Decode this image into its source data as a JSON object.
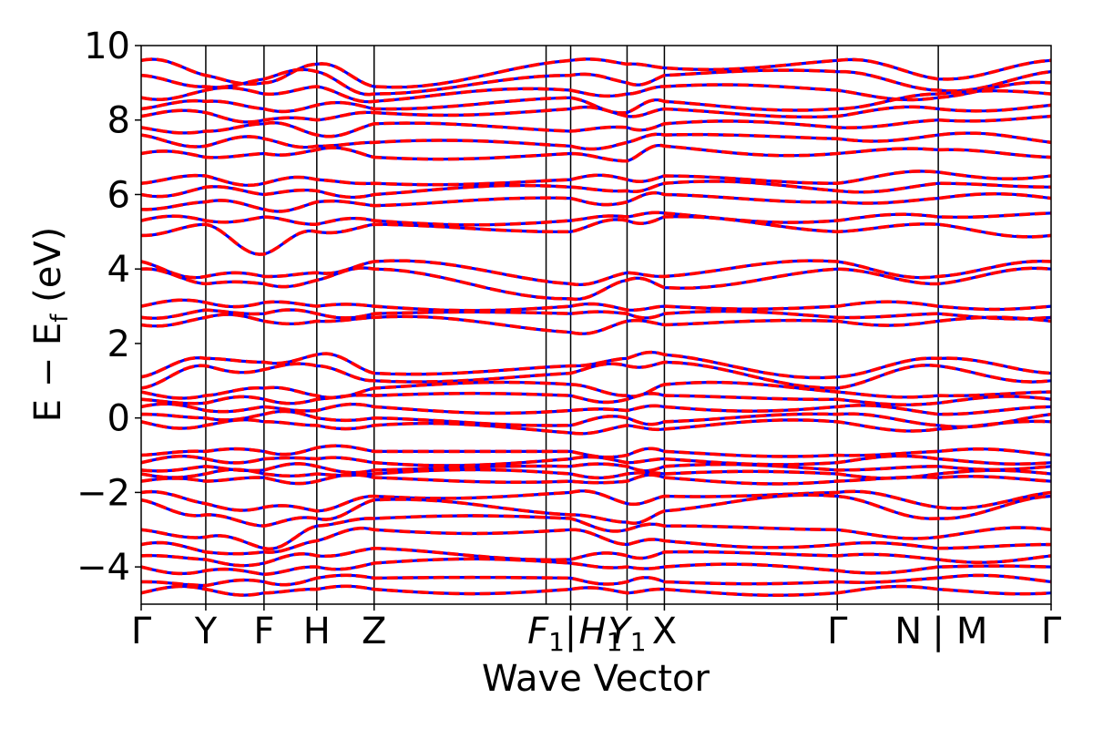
{
  "chart_data": {
    "type": "line",
    "title": "",
    "xlabel": "Wave Vector",
    "ylabel": "E − E",
    "ylabel_subscript": "f",
    "ylabel_unit": " (eV)",
    "ylim": [
      -5,
      10
    ],
    "yticks": [
      -4,
      -2,
      0,
      2,
      4,
      6,
      8,
      10
    ],
    "ytick_labels": [
      "−4",
      "−2",
      "0",
      "2",
      "4",
      "6",
      "8",
      "10"
    ],
    "kpath": [
      {
        "label": "Γ",
        "pos": 0.0
      },
      {
        "label": "Y",
        "pos": 0.071
      },
      {
        "label": "F",
        "pos": 0.135
      },
      {
        "label": "H",
        "pos": 0.193
      },
      {
        "label": "Z",
        "pos": 0.256
      },
      {
        "label": "F1|H1",
        "pos": 0.472
      },
      {
        "label": "Y1",
        "pos": 0.534
      },
      {
        "label": "X",
        "pos": 0.575
      },
      {
        "label": "Γ",
        "pos": 0.765
      },
      {
        "label": "N|M",
        "pos": 0.876
      },
      {
        "label": "Γ",
        "pos": 1.0
      }
    ],
    "kpath_tick_labels": [
      {
        "text": "Γ",
        "pos": 0.0
      },
      {
        "text": "Y",
        "pos": 0.071
      },
      {
        "text": "F",
        "pos": 0.135
      },
      {
        "text": "H",
        "pos": 0.193
      },
      {
        "text": "Z",
        "pos": 0.256
      },
      {
        "text": "F",
        "sub": "1",
        "pos": 0.445
      },
      {
        "text": "|",
        "pos": 0.472
      },
      {
        "text": "H",
        "sub": "1",
        "pos": 0.505
      },
      {
        "text": "Y",
        "sub": "1",
        "pos": 0.534
      },
      {
        "text": "X",
        "pos": 0.575
      },
      {
        "text": "Γ",
        "pos": 0.765
      },
      {
        "text": "N",
        "pos": 0.843
      },
      {
        "text": "|",
        "pos": 0.876
      },
      {
        "text": "M",
        "pos": 0.913
      },
      {
        "text": "Γ",
        "pos": 1.0
      }
    ],
    "vlines": [
      0.071,
      0.135,
      0.193,
      0.256,
      0.445,
      0.472,
      0.534,
      0.575,
      0.765,
      0.876
    ],
    "series": [
      {
        "style": "solid",
        "color": "#0000ff"
      },
      {
        "style": "dashed",
        "color": "#ff0000"
      }
    ],
    "bands": [
      [
        9.6,
        9.2,
        9.0,
        9.5,
        8.9,
        9.6,
        9.5,
        9.4,
        9.6,
        9.1,
        9.6
      ],
      [
        9.2,
        8.9,
        9.1,
        9.3,
        8.7,
        9.2,
        9.0,
        9.2,
        9.3,
        8.8,
        9.3
      ],
      [
        8.6,
        8.8,
        8.7,
        8.9,
        8.5,
        8.8,
        8.7,
        8.9,
        8.8,
        8.6,
        9.0
      ],
      [
        8.3,
        8.5,
        8.3,
        8.4,
        8.3,
        8.6,
        8.2,
        8.5,
        8.3,
        8.7,
        8.7
      ],
      [
        8.1,
        8.2,
        8.0,
        8.0,
        8.2,
        8.3,
        8.1,
        8.3,
        8.1,
        8.3,
        8.4
      ],
      [
        7.8,
        7.7,
        7.9,
        7.6,
        7.9,
        7.7,
        7.8,
        7.9,
        7.8,
        8.0,
        8.1
      ],
      [
        7.6,
        7.3,
        7.5,
        7.3,
        7.4,
        7.3,
        7.4,
        7.6,
        7.5,
        7.6,
        7.4
      ],
      [
        7.1,
        7.0,
        7.1,
        7.2,
        7.0,
        7.1,
        6.9,
        7.3,
        7.1,
        7.2,
        7.0
      ],
      [
        6.3,
        6.5,
        6.3,
        6.4,
        6.3,
        6.4,
        6.4,
        6.5,
        6.3,
        6.6,
        6.5
      ],
      [
        6.0,
        6.2,
        6.0,
        6.1,
        6.0,
        6.2,
        6.1,
        6.3,
        6.1,
        6.3,
        6.2
      ],
      [
        5.6,
        5.8,
        5.6,
        5.8,
        5.7,
        5.9,
        5.8,
        6.0,
        5.8,
        5.9,
        5.9
      ],
      [
        5.3,
        5.3,
        5.4,
        5.2,
        5.3,
        5.3,
        5.4,
        5.5,
        5.3,
        5.4,
        5.5
      ],
      [
        4.9,
        5.2,
        4.4,
        5.0,
        5.2,
        5.0,
        5.3,
        5.4,
        5.0,
        5.2,
        4.9
      ],
      [
        4.2,
        3.8,
        3.8,
        3.9,
        4.2,
        3.6,
        3.9,
        3.8,
        4.2,
        3.8,
        4.2
      ],
      [
        4.0,
        3.6,
        3.6,
        3.7,
        4.0,
        3.2,
        3.7,
        3.5,
        4.0,
        3.6,
        4.0
      ],
      [
        3.0,
        3.1,
        3.1,
        3.0,
        3.0,
        3.0,
        2.9,
        3.0,
        3.0,
        3.0,
        3.0
      ],
      [
        2.7,
        2.9,
        2.8,
        2.8,
        2.8,
        2.8,
        2.8,
        2.8,
        2.7,
        2.8,
        2.7
      ],
      [
        2.5,
        2.7,
        2.6,
        2.6,
        2.7,
        2.3,
        2.6,
        2.5,
        2.6,
        2.6,
        2.6
      ],
      [
        1.1,
        1.6,
        1.5,
        1.7,
        1.2,
        1.4,
        1.6,
        1.7,
        1.1,
        1.6,
        1.2
      ],
      [
        0.8,
        1.4,
        1.3,
        1.4,
        1.0,
        1.2,
        1.4,
        1.5,
        0.8,
        1.4,
        1.0
      ],
      [
        0.7,
        0.6,
        0.8,
        0.6,
        0.8,
        0.9,
        0.6,
        0.9,
        0.7,
        0.6,
        0.7
      ],
      [
        0.5,
        0.4,
        0.5,
        0.5,
        0.6,
        0.6,
        0.5,
        0.6,
        0.5,
        0.4,
        0.5
      ],
      [
        0.3,
        0.2,
        0.3,
        0.2,
        0.3,
        0.2,
        0.2,
        0.3,
        0.3,
        0.1,
        0.3
      ],
      [
        0.1,
        0.0,
        0.1,
        0.0,
        0.0,
        -0.2,
        0.0,
        -0.1,
        0.1,
        -0.2,
        0.1
      ],
      [
        -0.1,
        -0.2,
        -0.1,
        -0.2,
        -0.2,
        -0.4,
        -0.2,
        -0.3,
        -0.1,
        -0.3,
        -0.1
      ],
      [
        -1.0,
        -0.9,
        -0.9,
        -0.8,
        -0.9,
        -0.9,
        -1.0,
        -0.9,
        -1.0,
        -0.9,
        -1.0
      ],
      [
        -1.2,
        -1.1,
        -1.1,
        -1.1,
        -1.2,
        -1.1,
        -1.2,
        -1.1,
        -1.2,
        -1.1,
        -1.2
      ],
      [
        -1.4,
        -1.3,
        -1.4,
        -1.3,
        -1.4,
        -1.3,
        -1.3,
        -1.3,
        -1.4,
        -1.3,
        -1.3
      ],
      [
        -1.5,
        -1.5,
        -1.5,
        -1.5,
        -1.5,
        -1.5,
        -1.5,
        -1.5,
        -1.5,
        -1.5,
        -1.5
      ],
      [
        -1.7,
        -1.7,
        -1.6,
        -1.7,
        -1.6,
        -1.7,
        -1.7,
        -1.6,
        -1.7,
        -1.6,
        -1.7
      ],
      [
        -2.0,
        -2.3,
        -2.4,
        -2.5,
        -2.1,
        -2.0,
        -2.3,
        -2.1,
        -2.0,
        -2.4,
        -2.0
      ],
      [
        -2.2,
        -2.6,
        -2.9,
        -2.7,
        -2.2,
        -2.6,
        -2.8,
        -2.5,
        -2.1,
        -2.7,
        -2.1
      ],
      [
        -3.0,
        -3.2,
        -3.5,
        -2.9,
        -2.7,
        -2.7,
        -3.0,
        -2.9,
        -3.0,
        -3.2,
        -3.0
      ],
      [
        -3.4,
        -3.6,
        -3.6,
        -3.3,
        -3.0,
        -3.0,
        -3.4,
        -3.3,
        -3.4,
        -3.5,
        -3.4
      ],
      [
        -3.7,
        -3.8,
        -3.9,
        -3.7,
        -3.5,
        -3.8,
        -3.7,
        -3.6,
        -3.7,
        -3.8,
        -3.7
      ],
      [
        -4.0,
        -4.1,
        -4.2,
        -4.0,
        -3.9,
        -3.9,
        -4.0,
        -4.0,
        -4.1,
        -4.0,
        -4.0
      ],
      [
        -4.4,
        -4.5,
        -4.4,
        -4.3,
        -4.3,
        -4.3,
        -4.4,
        -4.4,
        -4.4,
        -4.3,
        -4.4
      ],
      [
        -4.7,
        -4.6,
        -4.7,
        -4.6,
        -4.6,
        -4.6,
        -4.7,
        -4.6,
        -4.7,
        -4.6,
        -4.7
      ]
    ]
  }
}
